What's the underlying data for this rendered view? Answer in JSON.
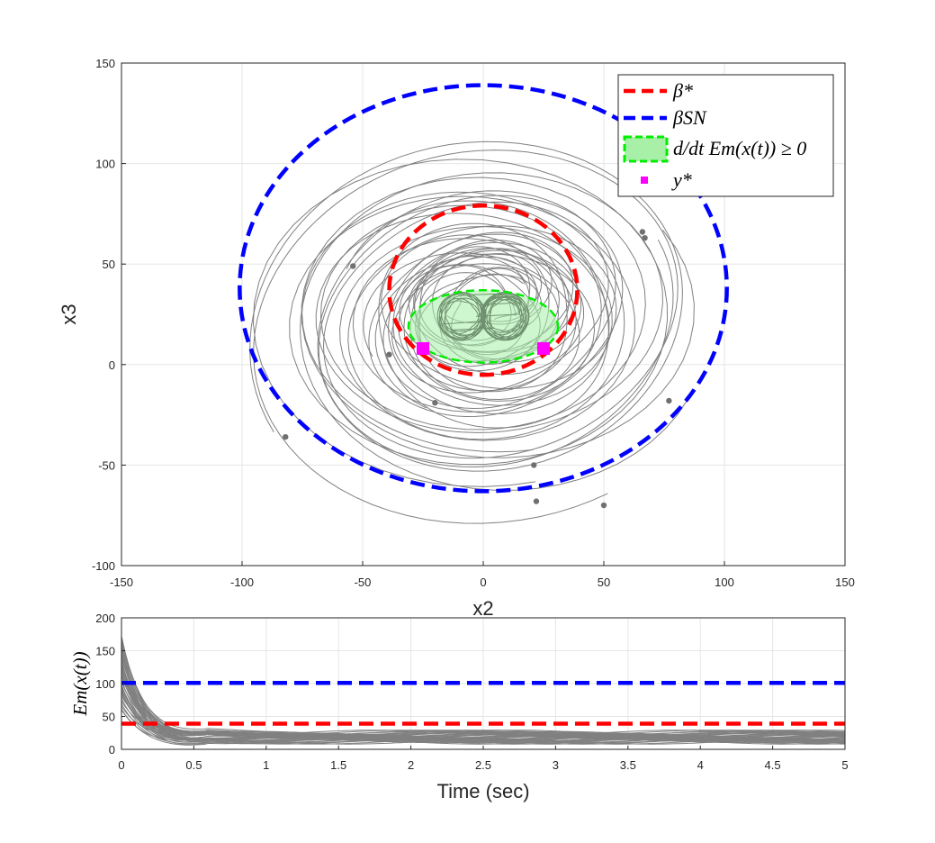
{
  "chart_data": [
    {
      "type": "line",
      "xlabel": "x2",
      "ylabel": "x3",
      "xlim": [
        -150,
        150
      ],
      "ylim": [
        -100,
        150
      ],
      "xticks": [
        "-150",
        "-100",
        "-50",
        "0",
        "50",
        "100",
        "150"
      ],
      "yticks": [
        "-100",
        "-50",
        "0",
        "50",
        "100",
        "150"
      ],
      "grid": true,
      "legend_position": "top-right",
      "legend": [
        {
          "key": "beta_star",
          "label": "β*",
          "style": "dashed",
          "color": "#ff0000"
        },
        {
          "key": "beta_sn",
          "label": "βSN",
          "style": "dashed",
          "color": "#0000ff"
        },
        {
          "key": "dEm_region",
          "label": "d/dt Em(x(t)) ≥ 0",
          "style": "filled-dashed",
          "color": "#00ee00",
          "fill": "#a8f0a8"
        },
        {
          "key": "y_star",
          "label": "y*",
          "style": "square-marker",
          "color": "#ff00ff"
        }
      ],
      "series": [
        {
          "name": "β*",
          "shape": "ellipse",
          "center": [
            0,
            37
          ],
          "radii": [
            39,
            39
          ]
        },
        {
          "name": "βSN",
          "shape": "ellipse",
          "center": [
            0,
            38
          ],
          "radii": [
            101,
            101
          ]
        },
        {
          "name": "d/dt Em(x(t)) ≥ 0",
          "shape": "ellipse",
          "center": [
            0,
            19
          ],
          "radii": [
            31,
            18
          ]
        },
        {
          "name": "y*",
          "points": [
            [
              -25,
              8
            ],
            [
              25,
              8
            ]
          ]
        }
      ],
      "trajectory_starts": [
        [
          -54,
          49
        ],
        [
          -39,
          5
        ],
        [
          -20,
          -19
        ],
        [
          -82,
          -36
        ],
        [
          21,
          -50
        ],
        [
          22,
          -68
        ],
        [
          50,
          -70
        ],
        [
          77,
          -18
        ],
        [
          66,
          66
        ],
        [
          67,
          63
        ]
      ],
      "trajectory_color": "#808080"
    },
    {
      "type": "line",
      "xlabel": "Time (sec)",
      "ylabel": "Em(x(t))",
      "xlim": [
        0,
        5
      ],
      "ylim": [
        0,
        200
      ],
      "xticks": [
        "0",
        "0.5",
        "1",
        "1.5",
        "2",
        "2.5",
        "3",
        "3.5",
        "4",
        "4.5",
        "5"
      ],
      "yticks": [
        "0",
        "50",
        "100",
        "150",
        "200"
      ],
      "grid": true,
      "series": [
        {
          "name": "βSN",
          "value": 101,
          "style": "dashed",
          "color": "#0000ff"
        },
        {
          "name": "β*",
          "value": 39,
          "style": "dashed",
          "color": "#ff0000"
        }
      ],
      "trajectory_color": "#808080"
    }
  ]
}
